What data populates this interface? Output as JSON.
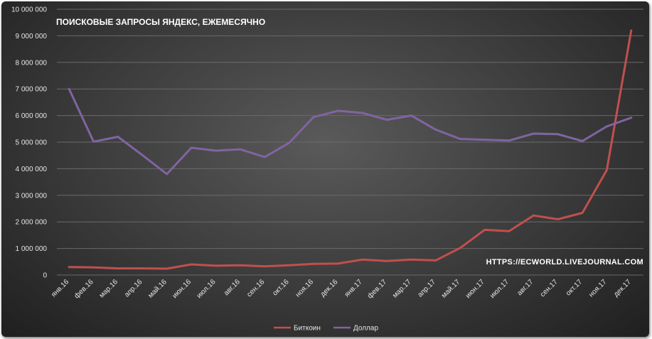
{
  "chart_data": {
    "type": "line",
    "title": "ПОИСКОВЫЕ ЗАПРОСЫ ЯНДЕКС, ЕЖЕМЕСЯЧНО",
    "watermark": "HTTPS://ECWORLD.LIVEJOURNAL.COM",
    "ylim": [
      0,
      10000000
    ],
    "y_ticks": [
      0,
      1000000,
      2000000,
      3000000,
      4000000,
      5000000,
      6000000,
      7000000,
      8000000,
      9000000,
      10000000
    ],
    "y_tick_labels": [
      "0",
      "1 000 000",
      "2 000 000",
      "3 000 000",
      "4 000 000",
      "5 000 000",
      "6 000 000",
      "7 000 000",
      "8 000 000",
      "9 000 000",
      "10 000 000"
    ],
    "categories": [
      "янв.16",
      "фев.16",
      "мар.16",
      "апр.16",
      "май.16",
      "июн.16",
      "июл.16",
      "авг.16",
      "сен.16",
      "окт.16",
      "ноя.16",
      "дек.16",
      "янв.17",
      "фев.17",
      "мар.17",
      "апр.17",
      "май.17",
      "июн.17",
      "июл.17",
      "авг.17",
      "сен.17",
      "окт.17",
      "ноя.17",
      "дек.17"
    ],
    "series": [
      {
        "name": "Биткоин",
        "color": "#c0504d",
        "values": [
          300000,
          290000,
          250000,
          250000,
          240000,
          400000,
          350000,
          370000,
          330000,
          370000,
          420000,
          430000,
          580000,
          530000,
          580000,
          550000,
          1020000,
          1700000,
          1650000,
          2240000,
          2100000,
          2340000,
          3950000,
          9200000
        ]
      },
      {
        "name": "Доллар",
        "color": "#8064a2",
        "values": [
          7000000,
          5020000,
          5200000,
          4510000,
          3800000,
          4790000,
          4680000,
          4730000,
          4440000,
          4970000,
          5940000,
          6180000,
          6100000,
          5840000,
          6000000,
          5470000,
          5120000,
          5090000,
          5060000,
          5320000,
          5300000,
          5040000,
          5590000,
          5920000
        ]
      }
    ],
    "grid": true,
    "legend": "bottom"
  }
}
